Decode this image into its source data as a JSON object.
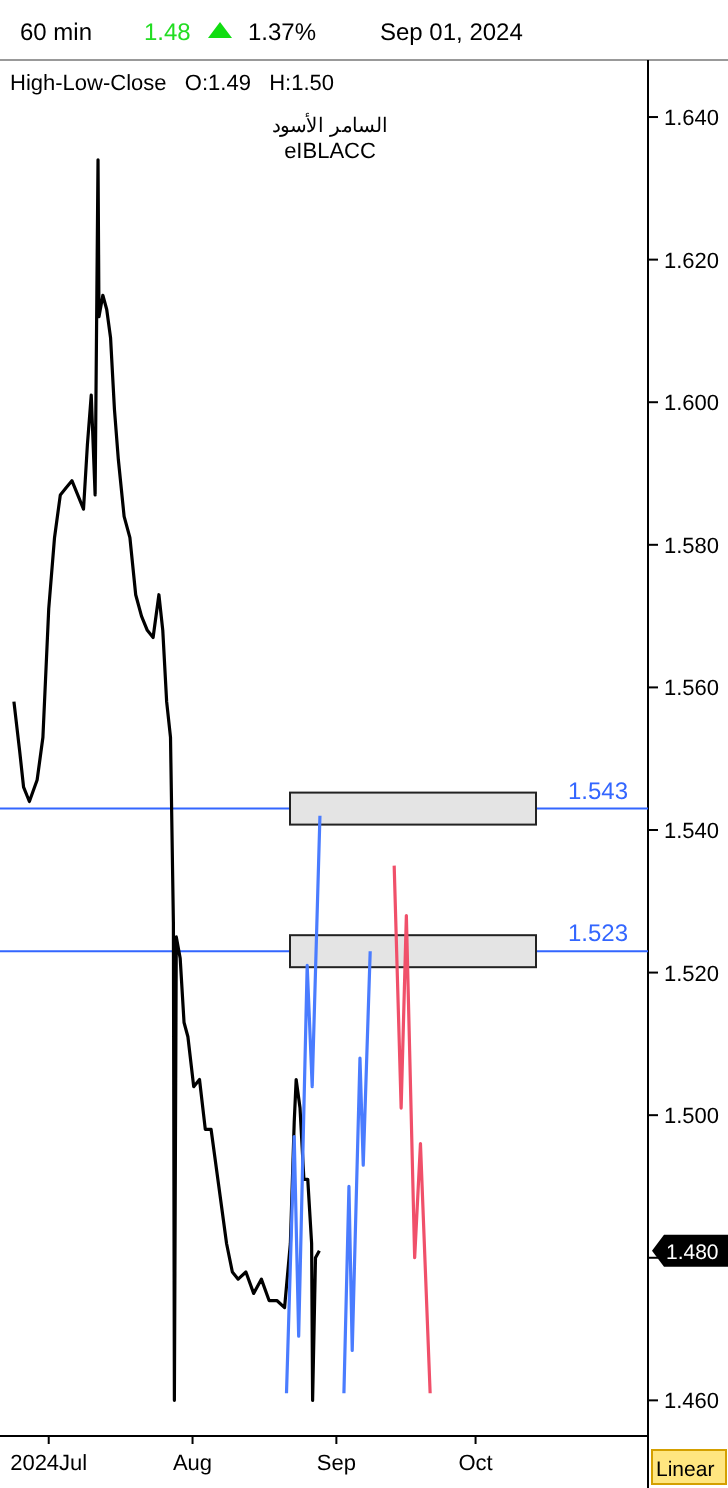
{
  "chart_data": {
    "type": "line",
    "title": "60 min",
    "subtitle": "High-Low-Close   O:1.49   H:1.50",
    "annotations": [
      "1.48",
      "1.37%",
      "Sep 01, 2024",
      "السامر الأسود",
      "eIBLACC",
      "1.480",
      "Linear"
    ],
    "xlim": [
      "2024-06-20T12:00",
      "2024-11-07T04:00"
    ],
    "xticks": [
      {
        "value": "2024-07-01",
        "label": "2024Jul"
      },
      {
        "value": "2024-08-01",
        "label": "Aug"
      },
      {
        "value": "2024-09-01",
        "label": "Sep"
      },
      {
        "value": "2024-10-01",
        "label": "Oct"
      }
    ],
    "ylim": [
      1.455,
      1.648
    ],
    "yticks": [
      {
        "value": 1.46,
        "label": "1.460"
      },
      {
        "value": 1.48,
        "label": null
      },
      {
        "value": 1.5,
        "label": "1.500"
      },
      {
        "value": 1.52,
        "label": "1.520"
      },
      {
        "value": 1.54,
        "label": "1.540"
      },
      {
        "value": 1.56,
        "label": "1.560"
      },
      {
        "value": 1.58,
        "label": "1.580"
      },
      {
        "value": 1.6,
        "label": "1.600"
      },
      {
        "value": 1.62,
        "label": "1.620"
      },
      {
        "value": 1.64,
        "label": "1.640"
      }
    ],
    "grid": false,
    "ref_lines": [
      {
        "axis": "y",
        "value": 1.543,
        "label": "1.543",
        "color": "#3366ff"
      },
      {
        "axis": "y",
        "value": 1.523,
        "label": "1.523",
        "color": "#3366ff"
      }
    ],
    "series": [
      {
        "color": "#000000",
        "x": [
          "2024-06-23T12:00",
          "2024-06-24T18:00",
          "2024-06-25T14:00",
          "2024-06-26T20:00",
          "2024-06-28T12:00",
          "2024-06-29T18:00",
          "2024-07-01T00:00",
          "2024-07-02T06:00",
          "2024-07-03T12:00",
          "2024-07-04T18:00",
          "2024-07-06T00:00",
          "2024-07-07T06:00",
          "2024-07-08T12:00",
          "2024-07-09T08:00",
          "2024-07-10T04:00",
          "2024-07-11T00:00",
          "2024-07-11T15:00",
          "2024-07-11T20:00",
          "2024-07-12T16:00",
          "2024-07-13T12:00",
          "2024-07-14T08:00",
          "2024-07-15T04:00",
          "2024-07-16T00:00",
          "2024-07-17T06:00",
          "2024-07-18T12:00",
          "2024-07-19T18:00",
          "2024-07-21T00:00",
          "2024-07-22T06:00",
          "2024-07-23T12:00",
          "2024-07-24T18:00",
          "2024-07-25T14:00",
          "2024-07-26T10:00",
          "2024-07-27T06:00",
          "2024-07-27T21:00",
          "2024-07-28T02:00",
          "2024-07-28T12:00",
          "2024-07-29T08:00",
          "2024-07-30T04:00",
          "2024-07-31T00:00",
          "2024-08-01T06:00",
          "2024-08-02T12:00",
          "2024-08-03T18:00",
          "2024-08-05T00:00",
          "2024-08-06T16:00",
          "2024-08-08T08:00",
          "2024-08-09T14:00",
          "2024-08-10T20:00",
          "2024-08-12T12:00",
          "2024-08-14T04:00",
          "2024-08-15T20:00",
          "2024-08-17T12:00",
          "2024-08-19T04:00",
          "2024-08-20T20:00",
          "2024-08-22T02:00",
          "2024-08-22T22:00",
          "2024-08-23T08:00",
          "2024-08-24T04:00",
          "2024-08-25T00:00",
          "2024-08-25T20:00",
          "2024-08-26T16:00",
          "2024-08-26T21:00",
          "2024-08-27T12:00",
          "2024-08-28T08:00"
        ],
        "values": [
          1.558,
          1.551,
          1.546,
          1.544,
          1.547,
          1.553,
          1.571,
          1.581,
          1.587,
          1.588,
          1.589,
          1.587,
          1.585,
          1.594,
          1.601,
          1.587,
          1.634,
          1.612,
          1.615,
          1.613,
          1.609,
          1.599,
          1.592,
          1.584,
          1.581,
          1.573,
          1.57,
          1.568,
          1.567,
          1.573,
          1.568,
          1.558,
          1.553,
          1.527,
          1.46,
          1.525,
          1.522,
          1.513,
          1.511,
          1.504,
          1.505,
          1.498,
          1.498,
          1.49,
          1.482,
          1.478,
          1.477,
          1.478,
          1.475,
          1.477,
          1.474,
          1.474,
          1.473,
          1.482,
          1.499,
          1.505,
          1.501,
          1.491,
          1.491,
          1.482,
          1.46,
          1.48,
          1.481
        ]
      },
      {
        "color": "#4a7cff",
        "x": [
          "2024-08-21T06:00",
          "2024-08-22T22:00",
          "2024-08-23T21:00",
          "2024-08-25T17:00",
          "2024-08-26T19:00",
          "2024-08-28T11:00"
        ],
        "values": [
          1.461,
          1.497,
          1.469,
          1.521,
          1.504,
          1.542
        ]
      },
      {
        "color": "#4a7cff",
        "x": [
          "2024-09-02T15:00",
          "2024-09-03T17:00",
          "2024-09-04T10:00",
          "2024-09-06T02:00",
          "2024-09-06T19:00",
          "2024-09-08T07:00"
        ],
        "values": [
          1.461,
          1.49,
          1.467,
          1.508,
          1.493,
          1.523
        ]
      },
      {
        "color": "#f0506a",
        "x": [
          "2024-09-13T11:00",
          "2024-09-14T23:00",
          "2024-09-16T02:00",
          "2024-09-17T21:00",
          "2024-09-19T03:00",
          "2024-09-21T05:00"
        ],
        "values": [
          1.535,
          1.501,
          1.528,
          1.48,
          1.496,
          1.461
        ]
      }
    ]
  }
}
